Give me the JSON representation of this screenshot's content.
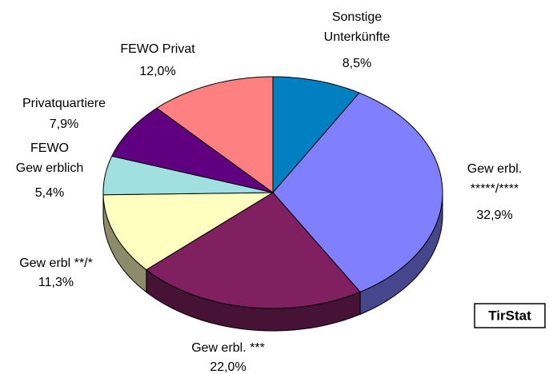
{
  "chart_data": {
    "type": "pie",
    "categories": [
      [
        "Sonstige",
        "Unterkünfte"
      ],
      [
        "Gew erbl.",
        "*****/****"
      ],
      [
        "Gew erbl. ***"
      ],
      [
        "Gew erbl **/*"
      ],
      [
        "FEWO",
        "Gew erblich"
      ],
      [
        "Privatquartiere"
      ],
      [
        "FEWO Privat"
      ]
    ],
    "values": [
      8.5,
      32.9,
      22.0,
      11.3,
      5.4,
      7.9,
      12.0
    ],
    "value_labels": [
      "8,5%",
      "32,9%",
      "22,0%",
      "11,3%",
      "5,4%",
      "7,9%",
      "12,0%"
    ],
    "colors": [
      "#0080c0",
      "#8080ff",
      "#802060",
      "#ffffc0",
      "#a0e0e0",
      "#600080",
      "#ff8080"
    ],
    "source": "TirStat"
  }
}
